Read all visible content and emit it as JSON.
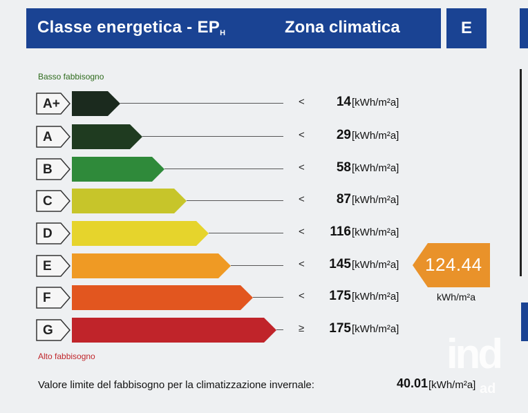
{
  "header": {
    "title": "Classe energetica - EP",
    "title_sub": "H",
    "zone_label": "Zona climatica",
    "zone_value": "E"
  },
  "legend": {
    "low": "Basso fabbisogno",
    "high": "Alto fabbisogno"
  },
  "rows": [
    {
      "label": "A+",
      "cmp": "<",
      "value": "14",
      "unit": "[kWh/m²a]",
      "color": "#1b2a1e"
    },
    {
      "label": "A",
      "cmp": "<",
      "value": "29",
      "unit": "[kWh/m²a]",
      "color": "#1f3b20"
    },
    {
      "label": "B",
      "cmp": "<",
      "value": "58",
      "unit": "[kWh/m²a]",
      "color": "#2f8a3a"
    },
    {
      "label": "C",
      "cmp": "<",
      "value": "87",
      "unit": "[kWh/m²a]",
      "color": "#c7c52a"
    },
    {
      "label": "D",
      "cmp": "<",
      "value": "116",
      "unit": "[kWh/m²a]",
      "color": "#e6d42c"
    },
    {
      "label": "E",
      "cmp": "<",
      "value": "145",
      "unit": "[kWh/m²a]",
      "color": "#ef9a24"
    },
    {
      "label": "F",
      "cmp": "<",
      "value": "175",
      "unit": "[kWh/m²a]",
      "color": "#e2561f"
    },
    {
      "label": "G",
      "cmp": "≥",
      "value": "175",
      "unit": "[kWh/m²a]",
      "color": "#c0242a"
    }
  ],
  "indicator": {
    "value": "124.44",
    "unit": "kWh/m²a",
    "color": "#e9922a"
  },
  "footer": {
    "label": "Valore limite del fabbisogno per la climatizzazione invernale:",
    "value": "40.01",
    "unit": "[kWh/m²a]"
  },
  "watermark": {
    "mark": "ind",
    "sub": "ad"
  }
}
